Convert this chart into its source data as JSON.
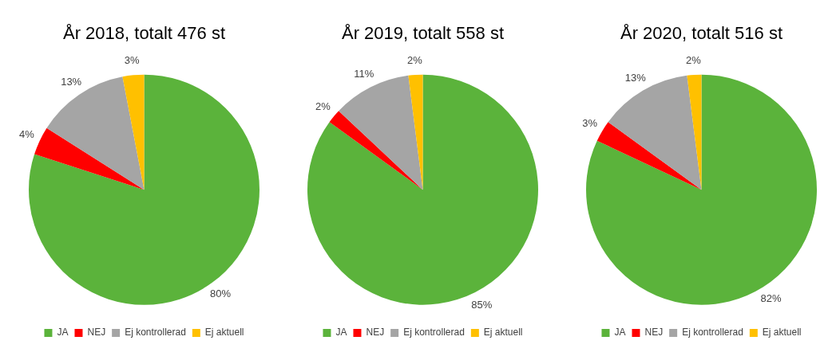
{
  "chart_data": [
    {
      "type": "pie",
      "title": "År 2018, totalt 476 st",
      "categories": [
        "JA",
        "NEJ",
        "Ej kontrollerad",
        "Ej aktuell"
      ],
      "values": [
        80,
        4,
        13,
        3
      ],
      "colors": [
        "#5bb33b",
        "#ff0000",
        "#a5a5a5",
        "#ffc000"
      ],
      "value_labels": [
        "80%",
        "4%",
        "13%",
        "3%"
      ],
      "legend": "bottom"
    },
    {
      "type": "pie",
      "title": "År 2019, totalt 558 st",
      "categories": [
        "JA",
        "NEJ",
        "Ej kontrollerad",
        "Ej aktuell"
      ],
      "values": [
        85,
        2,
        11,
        2
      ],
      "colors": [
        "#5bb33b",
        "#ff0000",
        "#a5a5a5",
        "#ffc000"
      ],
      "value_labels": [
        "85%",
        "2%",
        "11%",
        "2%"
      ],
      "legend": "bottom"
    },
    {
      "type": "pie",
      "title": "År 2020, totalt 516 st",
      "categories": [
        "JA",
        "NEJ",
        "Ej kontrollerad",
        "Ej aktuell"
      ],
      "values": [
        82,
        3,
        13,
        2
      ],
      "colors": [
        "#5bb33b",
        "#ff0000",
        "#a5a5a5",
        "#ffc000"
      ],
      "value_labels": [
        "82%",
        "3%",
        "13%",
        "2%"
      ],
      "legend": "bottom"
    }
  ]
}
